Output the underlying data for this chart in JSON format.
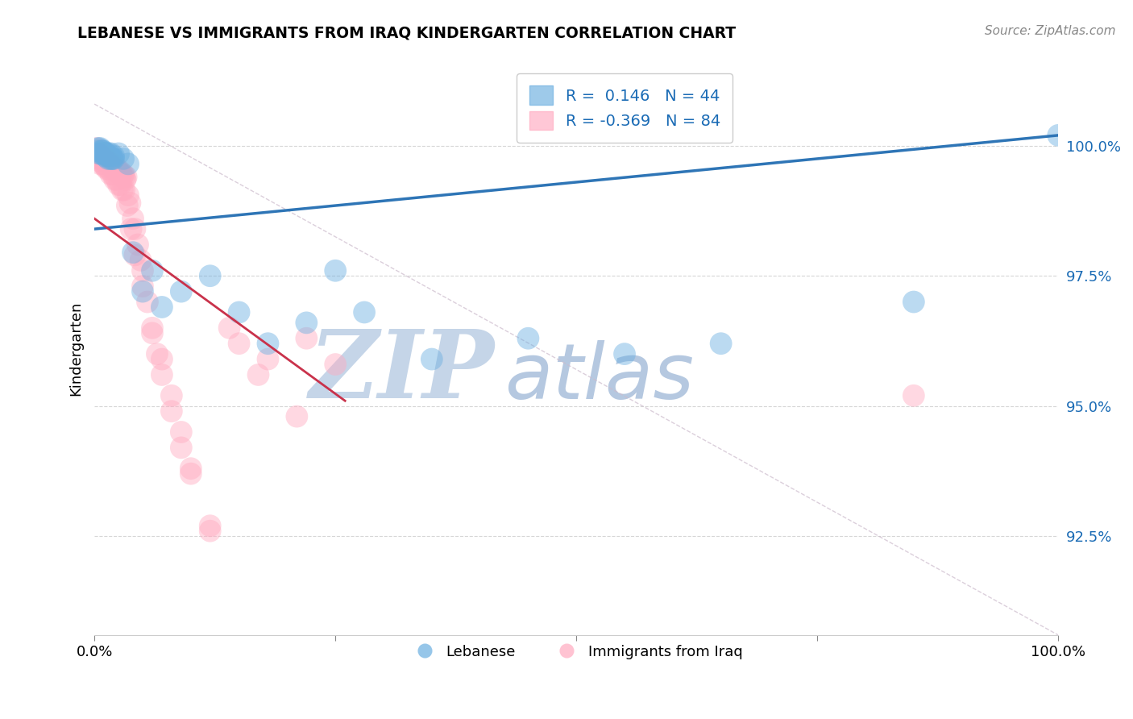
{
  "title": "LEBANESE VS IMMIGRANTS FROM IRAQ KINDERGARTEN CORRELATION CHART",
  "source_text": "Source: ZipAtlas.com",
  "ylabel": "Kindergarten",
  "y_tick_labels": [
    "92.5%",
    "95.0%",
    "97.5%",
    "100.0%"
  ],
  "y_tick_values": [
    0.925,
    0.95,
    0.975,
    1.0
  ],
  "x_min": 0.0,
  "x_max": 1.0,
  "y_min": 0.906,
  "y_max": 1.016,
  "legend_blue_text": "R =  0.146   N = 44",
  "legend_pink_text": "R = -0.369   N = 84",
  "blue_color": "#6aaee0",
  "pink_color": "#ffaac0",
  "blue_line_color": "#2E75B6",
  "pink_line_color": "#C9324B",
  "watermark_zip": "ZIP",
  "watermark_atlas": "atlas",
  "watermark_color_zip": "#c8d8ec",
  "watermark_color_atlas": "#b8cce4",
  "blue_scatter_x": [
    0.003,
    0.004,
    0.005,
    0.006,
    0.007,
    0.008,
    0.009,
    0.01,
    0.011,
    0.012,
    0.013,
    0.014,
    0.015,
    0.016,
    0.017,
    0.018,
    0.019,
    0.02,
    0.025,
    0.03,
    0.035,
    0.04,
    0.05,
    0.06,
    0.07,
    0.09,
    0.12,
    0.15,
    0.18,
    0.22,
    0.25,
    0.28,
    0.35,
    0.45,
    0.55,
    0.65,
    0.85,
    1.0,
    0.006,
    0.008,
    0.01,
    0.012,
    0.015,
    0.02
  ],
  "blue_scatter_y": [
    0.999,
    0.9995,
    0.9985,
    0.9995,
    0.999,
    0.9985,
    0.999,
    0.9985,
    0.998,
    0.9985,
    0.998,
    0.9975,
    0.998,
    0.9975,
    0.9985,
    0.9975,
    0.9975,
    0.9975,
    0.9985,
    0.9975,
    0.9965,
    0.9795,
    0.972,
    0.976,
    0.969,
    0.972,
    0.975,
    0.968,
    0.962,
    0.966,
    0.976,
    0.968,
    0.959,
    0.963,
    0.96,
    0.962,
    0.97,
    1.002,
    0.9985,
    0.999,
    0.9985,
    0.9985,
    0.9985,
    0.998
  ],
  "pink_scatter_x": [
    0.002,
    0.003,
    0.004,
    0.005,
    0.006,
    0.007,
    0.008,
    0.009,
    0.01,
    0.011,
    0.012,
    0.013,
    0.014,
    0.015,
    0.016,
    0.017,
    0.018,
    0.019,
    0.02,
    0.021,
    0.022,
    0.023,
    0.024,
    0.025,
    0.026,
    0.027,
    0.028,
    0.029,
    0.03,
    0.031,
    0.032,
    0.033,
    0.035,
    0.037,
    0.04,
    0.042,
    0.045,
    0.048,
    0.05,
    0.055,
    0.06,
    0.065,
    0.07,
    0.08,
    0.09,
    0.1,
    0.12,
    0.15,
    0.18,
    0.22,
    0.003,
    0.005,
    0.007,
    0.009,
    0.011,
    0.013,
    0.015,
    0.017,
    0.019,
    0.021,
    0.023,
    0.025,
    0.027,
    0.029,
    0.031,
    0.034,
    0.038,
    0.042,
    0.05,
    0.06,
    0.07,
    0.08,
    0.09,
    0.1,
    0.12,
    0.14,
    0.17,
    0.21,
    0.25,
    0.85,
    0.003,
    0.004,
    0.005,
    0.006
  ],
  "pink_scatter_y": [
    0.9995,
    0.999,
    0.9985,
    0.998,
    0.9985,
    0.998,
    0.9975,
    0.9985,
    0.9975,
    0.997,
    0.9975,
    0.997,
    0.9965,
    0.997,
    0.9965,
    0.996,
    0.9965,
    0.996,
    0.9955,
    0.996,
    0.9955,
    0.995,
    0.9955,
    0.995,
    0.9945,
    0.995,
    0.9945,
    0.994,
    0.9945,
    0.994,
    0.9935,
    0.994,
    0.9905,
    0.989,
    0.986,
    0.984,
    0.981,
    0.978,
    0.976,
    0.97,
    0.964,
    0.96,
    0.956,
    0.949,
    0.942,
    0.937,
    0.926,
    0.962,
    0.959,
    0.963,
    0.9985,
    0.9975,
    0.997,
    0.9965,
    0.996,
    0.9955,
    0.9955,
    0.9945,
    0.9945,
    0.9935,
    0.9935,
    0.9925,
    0.9925,
    0.9915,
    0.9915,
    0.9885,
    0.984,
    0.979,
    0.973,
    0.965,
    0.959,
    0.952,
    0.945,
    0.938,
    0.927,
    0.965,
    0.956,
    0.948,
    0.958,
    0.952,
    0.9985,
    0.9975,
    0.9975,
    0.9965
  ],
  "blue_line_x": [
    0.0,
    1.0
  ],
  "blue_line_y": [
    0.984,
    1.002
  ],
  "pink_line_x": [
    0.0,
    0.26
  ],
  "pink_line_y": [
    0.986,
    0.951
  ],
  "diag_line_x": [
    0.0,
    1.0
  ],
  "diag_line_y": [
    1.008,
    0.906
  ]
}
